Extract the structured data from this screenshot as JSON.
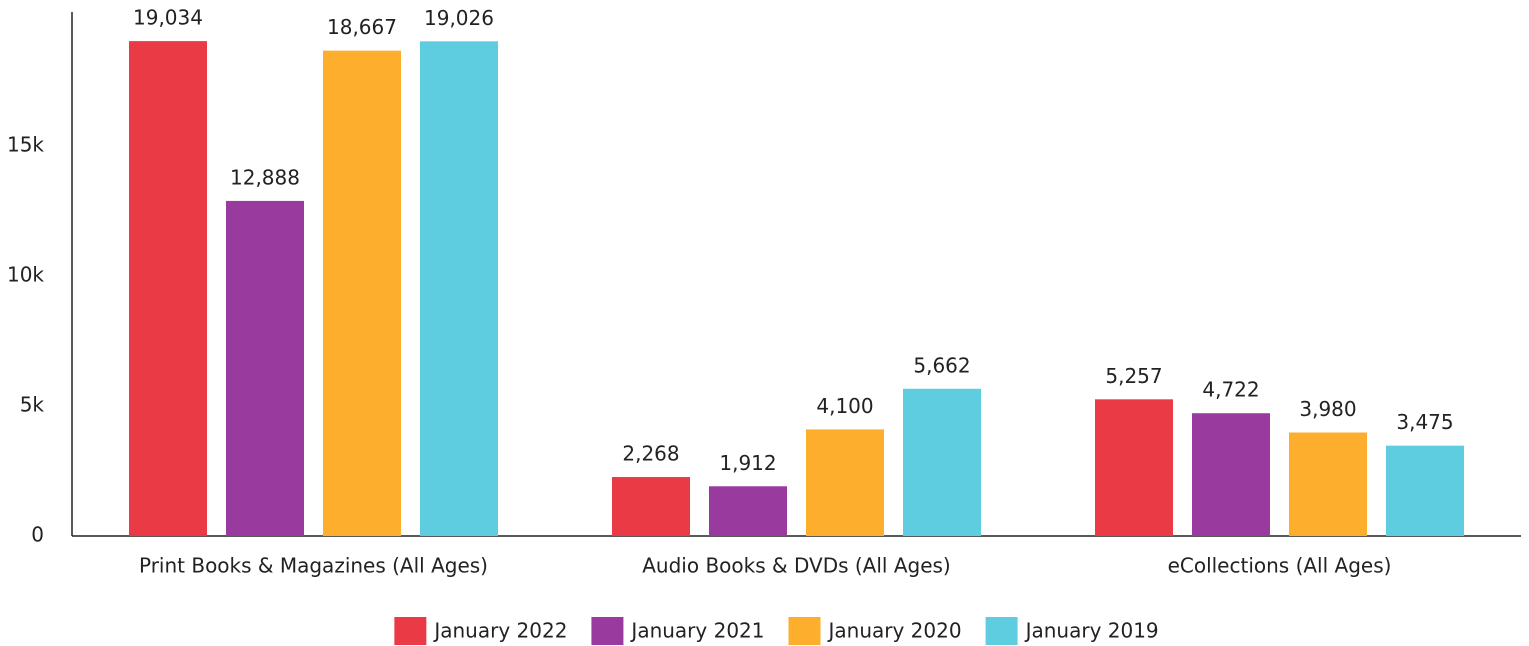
{
  "chart_data": {
    "type": "bar",
    "categories": [
      "Print Books & Magazines (All Ages)",
      "Audio Books & DVDs (All Ages)",
      "eCollections (All Ages)"
    ],
    "series": [
      {
        "name": "January 2022",
        "color": "#ea3a46",
        "values": [
          19034,
          2268,
          5257
        ],
        "value_labels": [
          "19,034",
          "2,268",
          "5,257"
        ]
      },
      {
        "name": "January 2021",
        "color": "#983a9e",
        "values": [
          12888,
          1912,
          4722
        ],
        "value_labels": [
          "12,888",
          "1,912",
          "4,722"
        ]
      },
      {
        "name": "January 2020",
        "color": "#fdae2d",
        "values": [
          18667,
          4100,
          3980
        ],
        "value_labels": [
          "18,667",
          "4,100",
          "3,980"
        ]
      },
      {
        "name": "January 2019",
        "color": "#5ecde0",
        "values": [
          19026,
          5662,
          3475
        ],
        "value_labels": [
          "19,026",
          "5,662",
          "3,475"
        ]
      }
    ],
    "ylim": [
      0,
      20000
    ],
    "yticks": [
      0,
      {
        "value": 5000,
        "label": "5k"
      },
      {
        "value": 10000,
        "label": "10k"
      },
      {
        "value": 15000,
        "label": "15k"
      }
    ],
    "legend": "bottom"
  }
}
